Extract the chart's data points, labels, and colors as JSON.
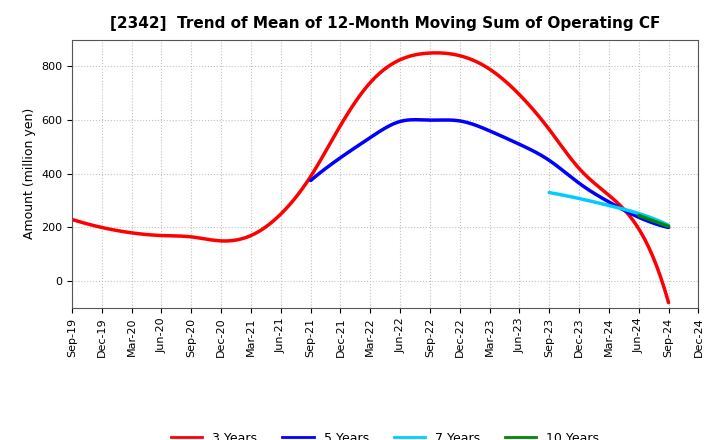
{
  "title": "[2342]  Trend of Mean of 12-Month Moving Sum of Operating CF",
  "ylabel": "Amount (million yen)",
  "background_color": "#ffffff",
  "plot_background": "#ffffff",
  "grid_color": "#bbbbbb",
  "series": {
    "3_years": {
      "label": "3 Years",
      "color": "#ff0000",
      "dates": [
        "Sep-19",
        "Dec-19",
        "Mar-20",
        "Jun-20",
        "Sep-20",
        "Dec-20",
        "Mar-21",
        "Jun-21",
        "Sep-21",
        "Dec-21",
        "Mar-22",
        "Jun-22",
        "Sep-22",
        "Dec-22",
        "Mar-23",
        "Jun-23",
        "Sep-23",
        "Dec-23",
        "Mar-24",
        "Jun-24",
        "Sep-24"
      ],
      "values": [
        230,
        200,
        180,
        170,
        165,
        150,
        170,
        250,
        390,
        580,
        740,
        825,
        850,
        840,
        790,
        695,
        565,
        420,
        320,
        195,
        -80
      ]
    },
    "5_years": {
      "label": "5 Years",
      "color": "#0000ff",
      "dates": [
        "Sep-21",
        "Dec-21",
        "Mar-22",
        "Jun-22",
        "Sep-22",
        "Dec-22",
        "Mar-23",
        "Jun-23",
        "Sep-23",
        "Dec-23",
        "Mar-24",
        "Jun-24",
        "Sep-24"
      ],
      "values": [
        375,
        460,
        535,
        595,
        600,
        597,
        560,
        510,
        450,
        365,
        295,
        238,
        200
      ]
    },
    "7_years": {
      "label": "7 Years",
      "color": "#00ccff",
      "dates": [
        "Sep-23",
        "Dec-23",
        "Mar-24",
        "Jun-24",
        "Sep-24"
      ],
      "values": [
        330,
        308,
        282,
        252,
        208
      ]
    },
    "10_years": {
      "label": "10 Years",
      "color": "#008800",
      "dates": [
        "Jun-24",
        "Sep-24"
      ],
      "values": [
        245,
        204
      ]
    }
  },
  "yticks": [
    0,
    200,
    400,
    600,
    800
  ],
  "ylim": [
    -100,
    900
  ],
  "xtick_labels": [
    "Sep-19",
    "Dec-19",
    "Mar-20",
    "Jun-20",
    "Sep-20",
    "Dec-20",
    "Mar-21",
    "Jun-21",
    "Sep-21",
    "Dec-21",
    "Mar-22",
    "Jun-22",
    "Sep-22",
    "Dec-22",
    "Mar-23",
    "Jun-23",
    "Sep-23",
    "Dec-23",
    "Mar-24",
    "Jun-24",
    "Sep-24",
    "Dec-24"
  ],
  "legend_order": [
    "3_years",
    "5_years",
    "7_years",
    "10_years"
  ],
  "linewidth": 2.5,
  "title_fontsize": 11,
  "axis_fontsize": 9,
  "tick_fontsize": 8
}
